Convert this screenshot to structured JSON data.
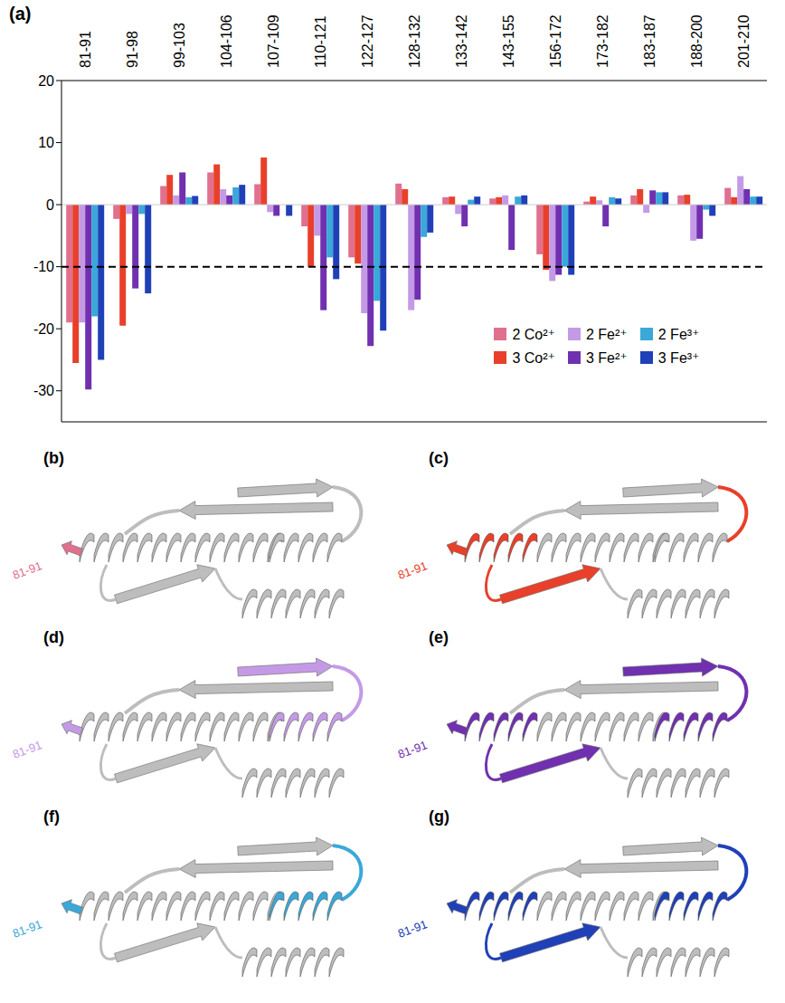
{
  "chart_data": {
    "type": "bar",
    "title": "(a)",
    "categories": [
      "81-91",
      "91-98",
      "99-103",
      "104-106",
      "107-109",
      "110-121",
      "122-127",
      "128-132",
      "133-142",
      "143-155",
      "156-172",
      "173-182",
      "183-187",
      "188-200",
      "201-210"
    ],
    "series": [
      {
        "name": "2 Co²⁺",
        "color": "#e0708e",
        "values": [
          -19,
          -2.3,
          3,
          5.2,
          3.3,
          -3.5,
          -8.5,
          3.4,
          1.2,
          1,
          -8,
          0.5,
          1.5,
          1.5,
          2.7
        ]
      },
      {
        "name": "3 Co²⁺",
        "color": "#e8402a",
        "values": [
          -25.5,
          -19.5,
          4.8,
          6.5,
          7.6,
          -10,
          -9.5,
          2.5,
          1.3,
          1.2,
          -10.5,
          1.3,
          2.5,
          1.6,
          1.2
        ]
      },
      {
        "name": "2 Fe²⁺",
        "color": "#c49ae6",
        "values": [
          -19,
          -1.5,
          1.5,
          2.5,
          -1.2,
          -5,
          -17.5,
          -17,
          -1.5,
          1.5,
          -12.3,
          0.7,
          -1.3,
          -5.8,
          4.6
        ]
      },
      {
        "name": "3 Fe²⁺",
        "color": "#7030b0",
        "values": [
          -29.8,
          -13.5,
          5.2,
          1.5,
          -1.8,
          -17,
          -22.8,
          -15.3,
          -3.5,
          -7.3,
          -11.3,
          -3.5,
          2.3,
          -5.5,
          2.5
        ]
      },
      {
        "name": "2 Fe³⁺",
        "color": "#3aa8d8",
        "values": [
          -18,
          -1.5,
          1.2,
          2.8,
          0,
          -8.5,
          -15.5,
          -5.2,
          0.8,
          1.3,
          -10,
          1.2,
          2,
          -0.8,
          1.3
        ]
      },
      {
        "name": "3 Fe³⁺",
        "color": "#2040b8",
        "values": [
          -25,
          -14.3,
          1.4,
          3.2,
          -1.8,
          -12,
          -20.3,
          -4.5,
          1.3,
          1.5,
          -11.3,
          1,
          2,
          -1.8,
          1.3
        ]
      }
    ],
    "ylim": [
      -35,
      20
    ],
    "yticks": [
      -30,
      -20,
      -10,
      0,
      10,
      20
    ],
    "reference_line": -10,
    "legend": "lower right",
    "grid": false
  },
  "structures": [
    {
      "panel": "(b)",
      "series": "2 Co²⁺",
      "label": "81-91"
    },
    {
      "panel": "(c)",
      "series": "3 Co²⁺",
      "label": "81-91"
    },
    {
      "panel": "(d)",
      "series": "2 Fe²⁺",
      "label": "81-91"
    },
    {
      "panel": "(e)",
      "series": "3 Fe²⁺",
      "label": "81-91"
    },
    {
      "panel": "(f)",
      "series": "2 Fe³⁺",
      "label": "81-91"
    },
    {
      "panel": "(g)",
      "series": "3 Fe³⁺",
      "label": "81-91"
    }
  ]
}
